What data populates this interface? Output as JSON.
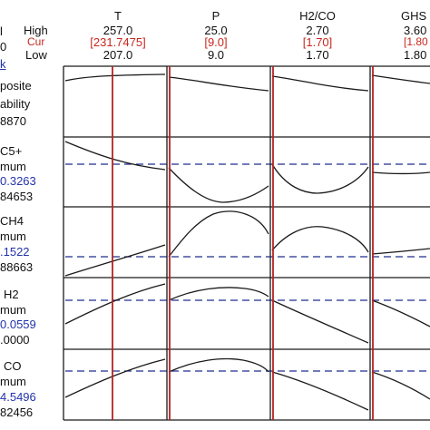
{
  "header": {
    "left_partial": [
      "l",
      "0",
      "k"
    ],
    "level_labels": {
      "high": "High",
      "cur": "Cur",
      "low": "Low"
    },
    "factors": [
      {
        "name": "T",
        "high": "257.0",
        "cur": "[231.7475]",
        "low": "207.0"
      },
      {
        "name": "P",
        "high": "25.0",
        "cur": "[9.0]",
        "low": "9.0"
      },
      {
        "name": "H2/CO",
        "high": "2.70",
        "cur": "[1.70]",
        "low": "1.70"
      },
      {
        "name": "GHS",
        "high": "3.60",
        "cur": "[1.80",
        "low": "1.80"
      }
    ]
  },
  "responses": [
    {
      "lines": [
        "posite",
        "ability",
        "8870"
      ]
    },
    {
      "lines": [
        "C5+",
        "mum",
        "0.3263",
        "84653"
      ]
    },
    {
      "lines": [
        "CH4",
        "mum",
        ".1522",
        "88663"
      ]
    },
    {
      "lines": [
        "H2",
        "mum",
        "0.0559",
        ".0000"
      ]
    },
    {
      "lines": [
        "CO",
        "mum",
        "4.5496",
        "82456"
      ]
    }
  ],
  "colors": {
    "grid": "#1a1a1a",
    "current_line": "#b22222",
    "reference_dash": "#1f2f8f",
    "curve": "#1a1a1a",
    "cur_text": "#c8281e",
    "target_text": "#2233aa"
  }
}
